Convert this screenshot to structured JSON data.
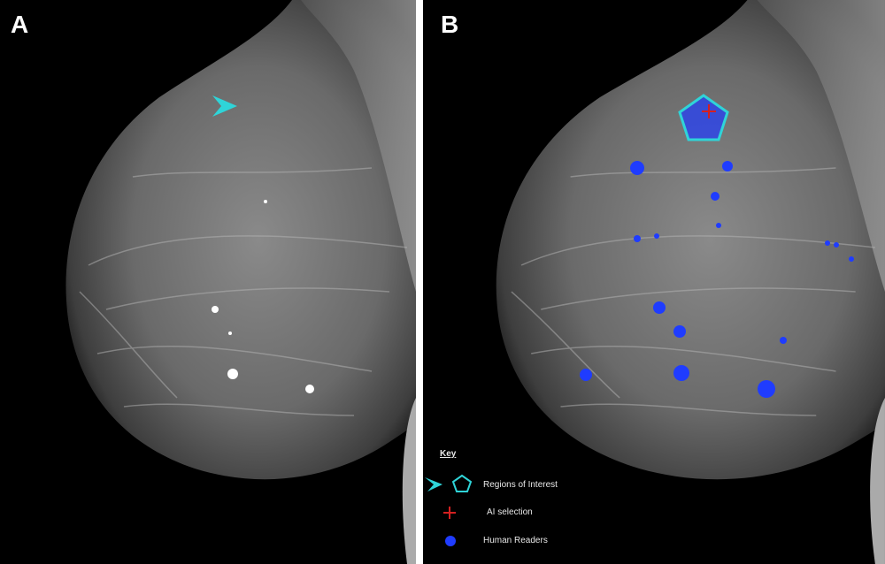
{
  "panels": [
    {
      "label": "A"
    },
    {
      "label": "B"
    }
  ],
  "key": {
    "title": "Key",
    "items": [
      {
        "label": "Regions of Interest",
        "icon": "cyan-pentagon-and-arrowhead-icon",
        "color": "#2fd4d8"
      },
      {
        "label": "AI selection",
        "icon": "red-cross-icon",
        "color": "#d42020"
      },
      {
        "label": "Human Readers",
        "icon": "blue-dot-icon",
        "color": "#1f3cff"
      }
    ]
  },
  "colors": {
    "roi": "#2fd4d8",
    "ai": "#d42020",
    "human": "#1f3cff"
  }
}
